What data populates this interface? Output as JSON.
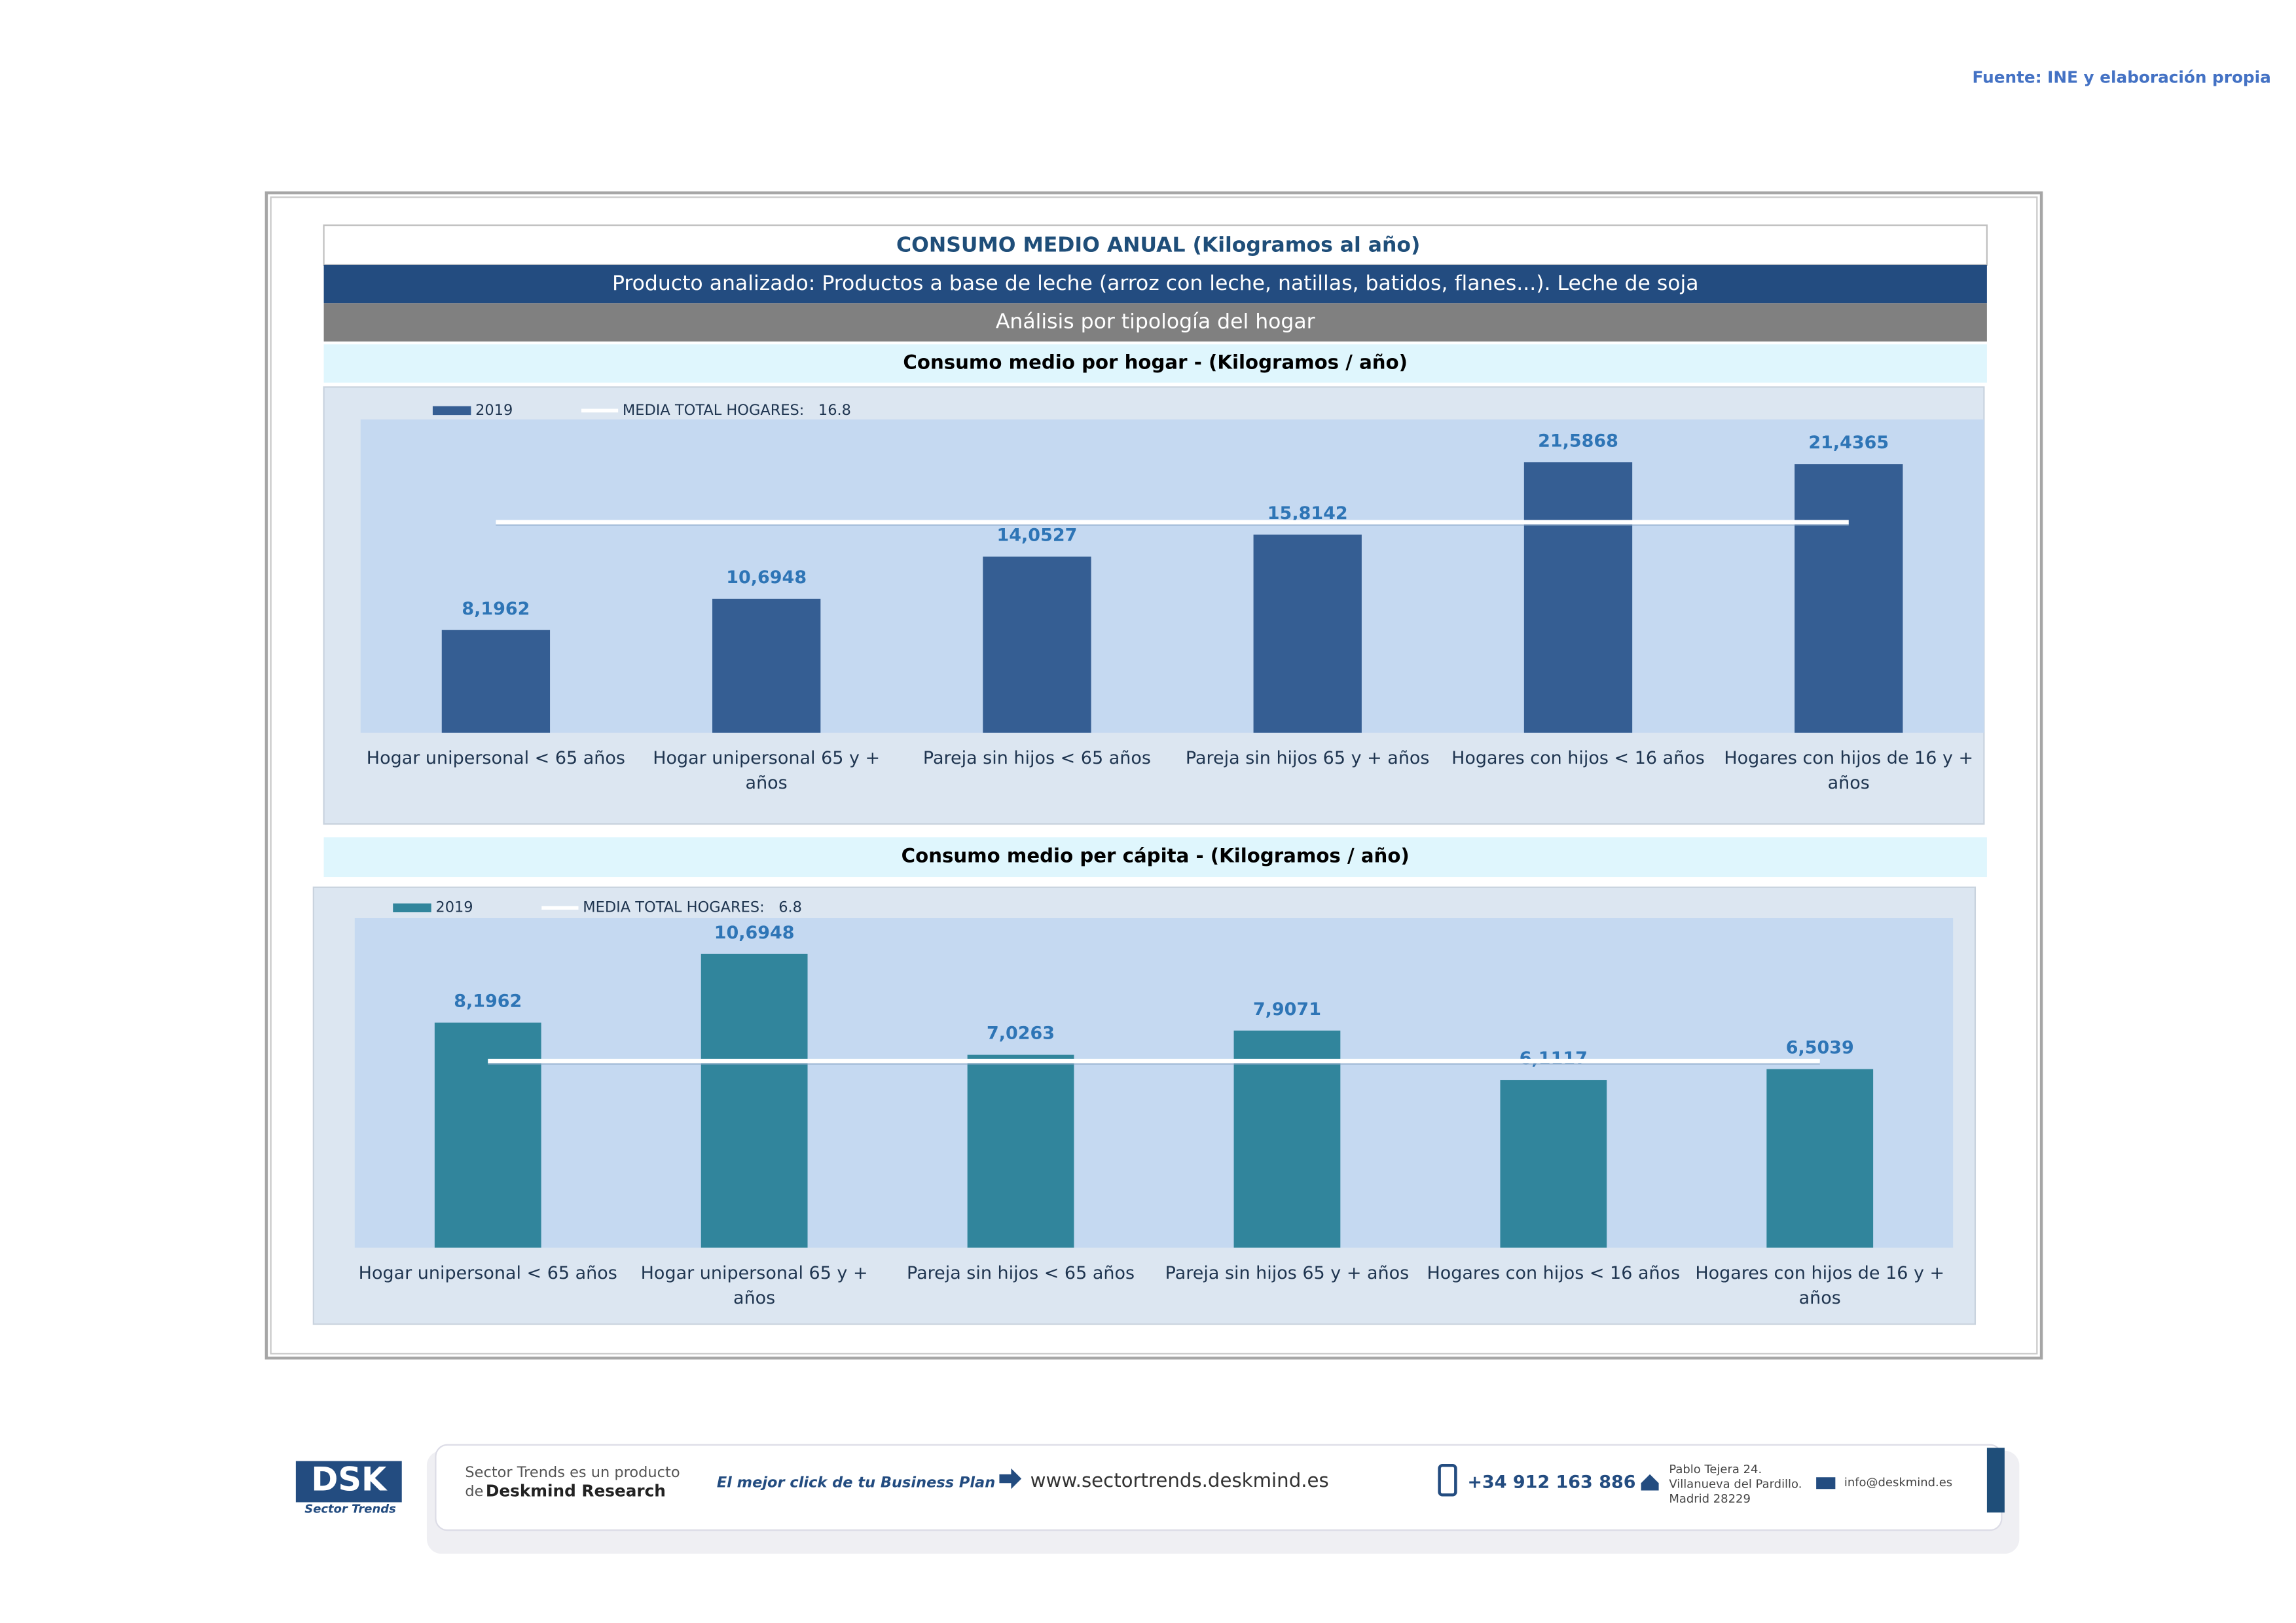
{
  "source": "Fuente: INE y elaboración propia",
  "title": "CONSUMO MEDIO ANUAL (Kilogramos al año)",
  "product": "Producto analizado: Productos a base de leche (arroz con leche, natillas, batidos, flanes...). Leche de soja",
  "analysis": "Análisis por tipología del hogar",
  "chart_data": [
    {
      "type": "bar",
      "title": "Consumo medio por hogar -  (Kilogramos / año)",
      "categories": [
        "Hogar unipersonal < 65 años",
        "Hogar unipersonal  65 y + años",
        "Pareja sin hijos < 65 años",
        "Pareja sin hijos 65 y + años",
        "Hogares con hijos < 16 años",
        "Hogares con hijos de 16 y + años"
      ],
      "series": [
        {
          "name": "2019",
          "color": "#355e93",
          "values": [
            8.1962,
            10.6948,
            14.0527,
            15.8142,
            21.5868,
            21.4365
          ],
          "value_labels": [
            "8,1962",
            "10,6948",
            "14,0527",
            "15,8142",
            "21,5868",
            "21,4365"
          ]
        }
      ],
      "mean_label": "MEDIA TOTAL  HOGARES:",
      "mean": 16.8,
      "ylim": [
        0,
        25
      ]
    },
    {
      "type": "bar",
      "title": "Consumo medio per cápita -  (Kilogramos / año)",
      "categories": [
        "Hogar unipersonal < 65 años",
        "Hogar unipersonal  65 y + años",
        "Pareja sin hijos < 65 años",
        "Pareja sin hijos 65 y + años",
        "Hogares con hijos < 16 años",
        "Hogares con hijos de 16 y + años"
      ],
      "series": [
        {
          "name": "2019",
          "color": "#31859c",
          "values": [
            8.1962,
            10.6948,
            7.0263,
            7.9071,
            6.1117,
            6.5039
          ],
          "value_labels": [
            "8,1962",
            "10,6948",
            "7,0263",
            "7,9071",
            "6,1117",
            "6,5039"
          ]
        }
      ],
      "mean_label": "MEDIA TOTAL  HOGARES:",
      "mean": 6.8,
      "ylim": [
        0,
        12
      ]
    }
  ],
  "footer": {
    "logo": "DSK",
    "logo_sub": "Sector Trends",
    "line1": "Sector Trends es un producto",
    "line2_prefix": "de",
    "line2_brand": "Deskmind Research",
    "slogan": "El mejor click de tu Business Plan",
    "web": "www.sectortrends.deskmind.es",
    "phone": "+34 912 163 886",
    "address": [
      "Pablo Tejera 24.",
      "Villanueva del Pardillo.",
      "Madrid 28229"
    ],
    "email": "info@deskmind.es"
  }
}
